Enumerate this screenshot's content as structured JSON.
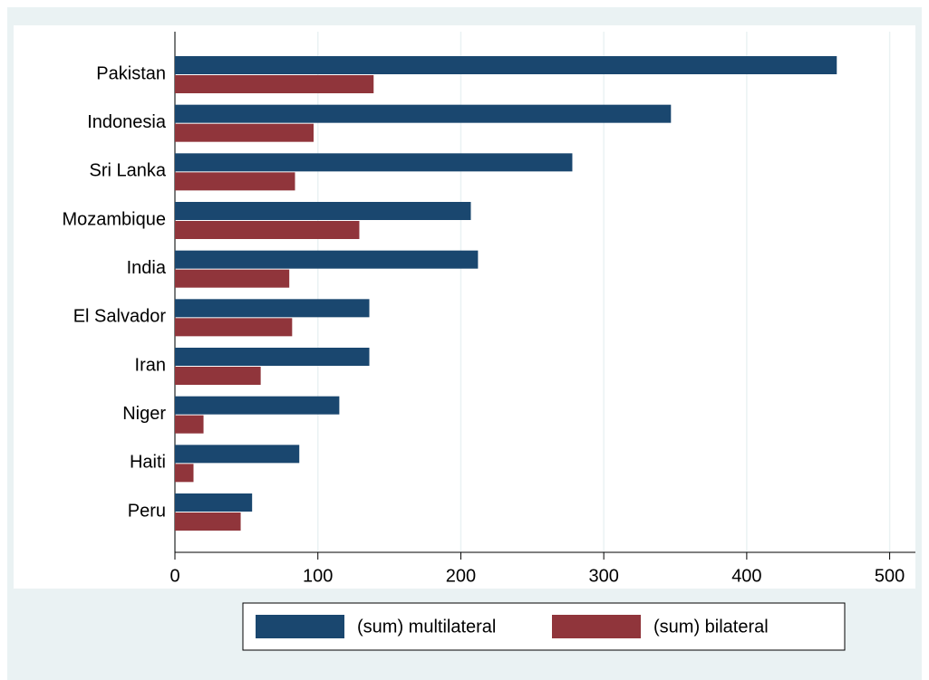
{
  "chart_data": {
    "type": "bar",
    "orientation": "horizontal",
    "categories": [
      "Pakistan",
      "Indonesia",
      "Sri Lanka",
      "Mozambique",
      "India",
      "El Salvador",
      "Iran",
      "Niger",
      "Haiti",
      "Peru"
    ],
    "series": [
      {
        "name": "(sum) multilateral",
        "color": "#1a476f",
        "values": [
          463,
          347,
          278,
          207,
          212,
          136,
          136,
          115,
          87,
          54
        ]
      },
      {
        "name": "(sum) bilateral",
        "color": "#90353b",
        "values": [
          139,
          97,
          84,
          129,
          80,
          82,
          60,
          20,
          13,
          46
        ]
      }
    ],
    "xlim": [
      0,
      518
    ],
    "xticks": [
      0,
      100,
      200,
      300,
      400,
      500
    ],
    "grid": true,
    "legend": "bottom"
  }
}
